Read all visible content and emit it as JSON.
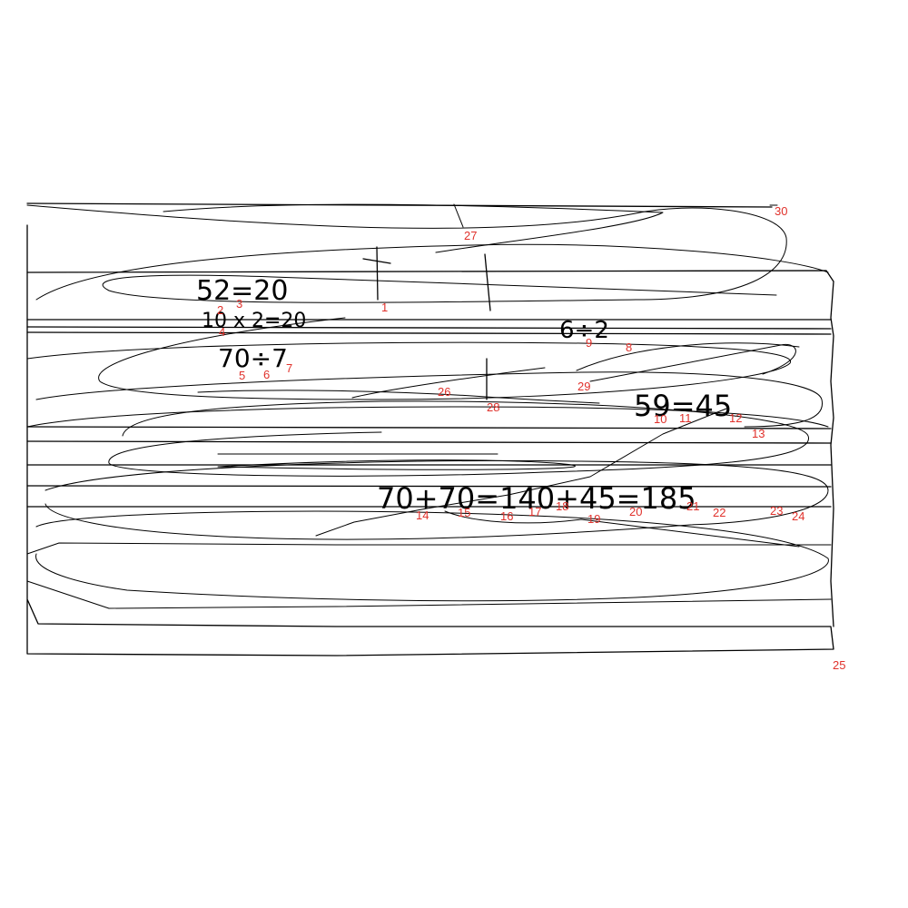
{
  "colors": {
    "ink": "#000000",
    "marker": "#e0312b",
    "background": "#ffffff"
  },
  "handwriting": [
    "52=20",
    "10 x 2=20",
    "70÷7",
    "6÷2",
    "59=45",
    "70+70=140+45=185"
  ],
  "markers": [
    "1",
    "2",
    "3",
    "4",
    "5",
    "6",
    "7",
    "8",
    "9",
    "10",
    "11",
    "12",
    "13",
    "14",
    "15",
    "16",
    "17",
    "18",
    "19",
    "20",
    "21",
    "22",
    "23",
    "24",
    "25",
    "26",
    "27",
    "28",
    "29",
    "30"
  ]
}
